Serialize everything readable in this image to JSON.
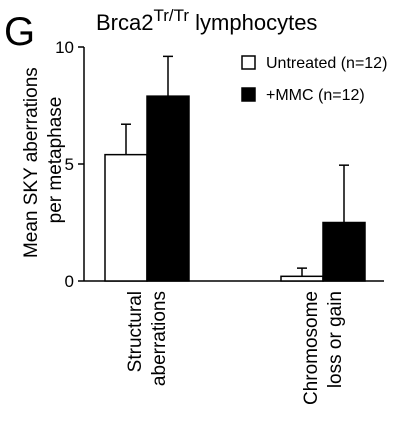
{
  "panel_label": "G",
  "chart_data": {
    "type": "bar",
    "title": {
      "main": "Brca2",
      "superscript": "Tr/Tr",
      "suffix": " lymphocytes"
    },
    "ylabel": [
      "Mean SKY aberrations",
      "per metaphase"
    ],
    "xlabel": "",
    "ylim": [
      0,
      10
    ],
    "yticks": [
      0,
      5,
      10
    ],
    "grid": false,
    "legend_position": "top-right",
    "categories": [
      [
        "Structural",
        "aberrations"
      ],
      [
        "Chromosome",
        "loss or gain"
      ]
    ],
    "series": [
      {
        "name": "Untreated (n=12)",
        "values": [
          5.4,
          0.2
        ],
        "errors": [
          1.3,
          0.35
        ],
        "fill": "#ffffff"
      },
      {
        "name": "+MMC (n=12)",
        "values": [
          7.9,
          2.5
        ],
        "errors": [
          1.7,
          2.45
        ],
        "fill": "#000000"
      }
    ]
  }
}
